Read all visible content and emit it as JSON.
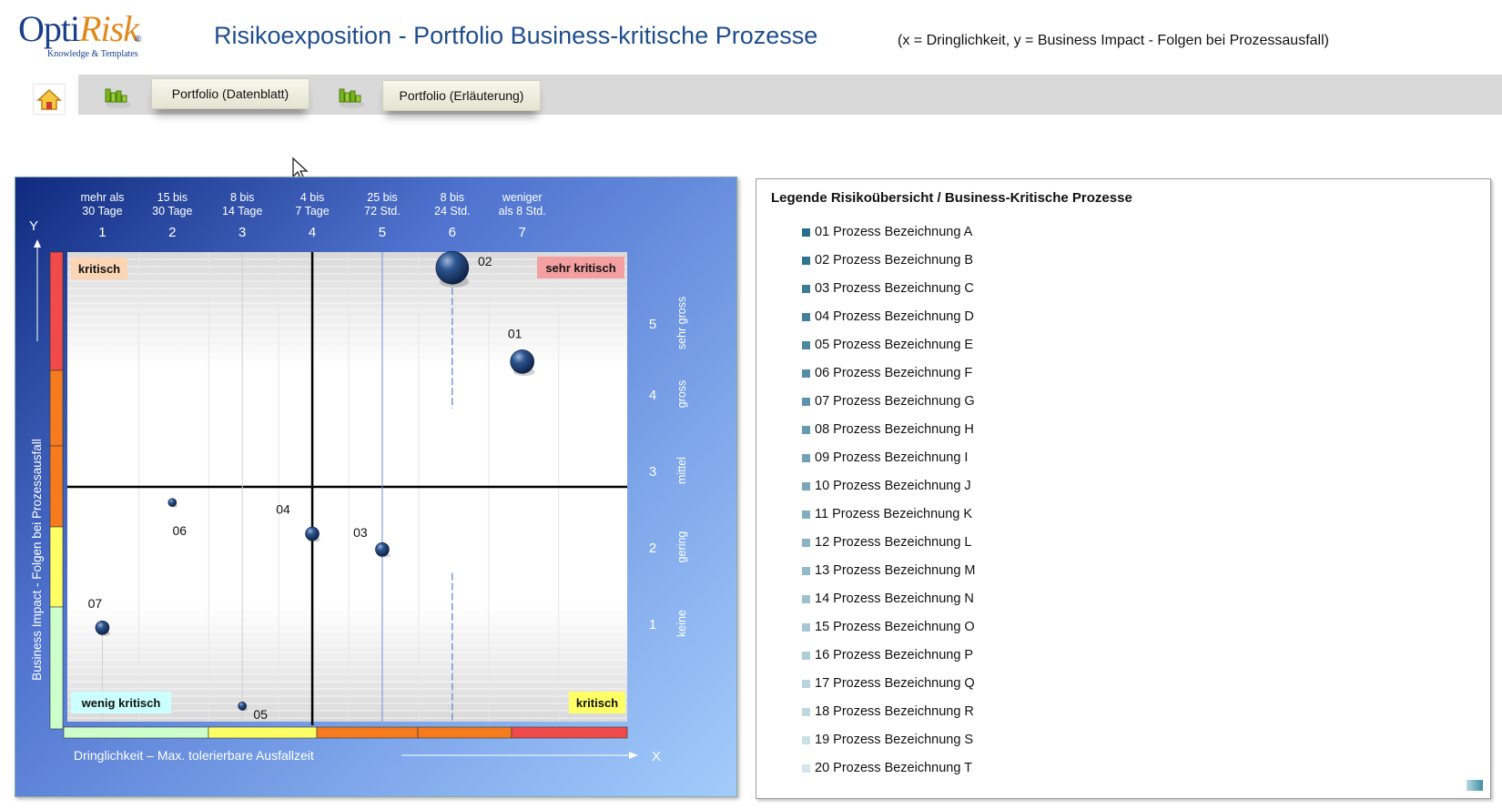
{
  "header": {
    "logo_opti": "Opti",
    "logo_risk": "Risk",
    "logo_reg": "®",
    "logo_sub": "Knowledge & Templates",
    "title": "Risikoexposition - Portfolio Business-kritische Prozesse",
    "subtitle": "(x = Dringlichkeit,   y = Business Impact  -  Folgen bei Prozessausfall)"
  },
  "toolbar": {
    "btn_datenblatt": "Portfolio (Datenblatt)",
    "btn_erlaeuterung": "Portfolio (Erläuterung)"
  },
  "chart_data": {
    "type": "scatter",
    "xlim": [
      0.5,
      8.5
    ],
    "ylim": [
      0,
      6
    ],
    "x_ticks": [
      1,
      2,
      3,
      4,
      5,
      6,
      7
    ],
    "x_tick_labels": [
      [
        "mehr als",
        "30 Tage"
      ],
      [
        "15 bis",
        "30 Tage"
      ],
      [
        "8 bis",
        "14 Tage"
      ],
      [
        "4 bis",
        "7 Tage"
      ],
      [
        "25 bis",
        "72 Std."
      ],
      [
        "8 bis",
        "24 Std."
      ],
      [
        "weniger",
        "als 8 Std."
      ]
    ],
    "y_ticks": [
      1,
      2,
      3,
      4,
      5
    ],
    "y_tick_labels": [
      "keine",
      "gering",
      "mittel",
      "gross",
      "sehr gross"
    ],
    "y_axis_symbol": "Y",
    "x_axis_symbol": "X",
    "xlabel": "Dringlichkeit   –  Max. tolerierbare Ausfallzeit",
    "ylabel": "Business Impact  -  Folgen bei Prozessausfall",
    "quadrant_lines": {
      "x": 4,
      "y": 3
    },
    "quadrant_labels": {
      "top_left": "kritisch",
      "top_right": "sehr kritisch",
      "bottom_left": "wenig kritisch",
      "bottom_right": "kritisch"
    },
    "points": [
      {
        "label": "01",
        "x": 7.0,
        "y": 4.6,
        "size": 2
      },
      {
        "label": "02",
        "x": 6.0,
        "y": 5.8,
        "size": 3
      },
      {
        "label": "03",
        "x": 5.0,
        "y": 2.2,
        "size": 1
      },
      {
        "label": "04",
        "x": 4.0,
        "y": 2.4,
        "size": 1
      },
      {
        "label": "05",
        "x": 3.0,
        "y": 0.2,
        "size": 0
      },
      {
        "label": "06",
        "x": 2.0,
        "y": 2.8,
        "size": 0
      },
      {
        "label": "07",
        "x": 1.0,
        "y": 1.2,
        "size": 1
      }
    ],
    "grid": true
  },
  "colors": {
    "risk_red": "#f04a4a",
    "risk_orange": "#f57b1e",
    "risk_yellow": "#ffff66",
    "risk_green": "#ccffcc",
    "bubble": "#1d3f72"
  },
  "legend": {
    "title": "Legende Risikoübersicht / Business-Kritische Prozesse",
    "items": [
      "01 Prozess Bezeichnung A",
      "02 Prozess Bezeichnung B",
      "03 Prozess Bezeichnung C",
      "04 Prozess Bezeichnung D",
      "05 Prozess Bezeichnung E",
      "06 Prozess Bezeichnung F",
      "07 Prozess Bezeichnung G",
      "08 Prozess Bezeichnung H",
      "09 Prozess Bezeichnung I",
      "10 Prozess Bezeichnung J",
      "11 Prozess Bezeichnung K",
      "12 Prozess Bezeichnung L",
      "13 Prozess Bezeichnung M",
      "14 Prozess Bezeichnung N",
      "15 Prozess Bezeichnung O",
      "16 Prozess Bezeichnung P",
      "17 Prozess Bezeichnung Q",
      "18 Prozess Bezeichnung R",
      "19 Prozess Bezeichnung S",
      "20 Prozess Bezeichnung T"
    ]
  }
}
